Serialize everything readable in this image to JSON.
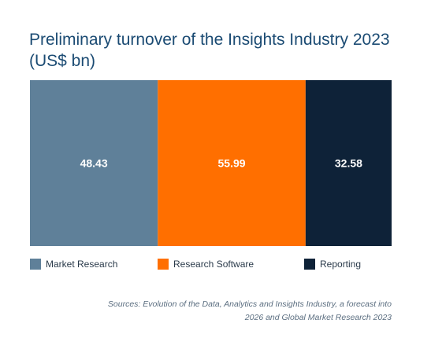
{
  "chart_data": {
    "type": "bar",
    "title": "Preliminary turnover of the Insights Industry 2023 (US$ bn)",
    "categories": [
      "Market Research",
      "Research Software",
      "Reporting"
    ],
    "values": [
      48.43,
      55.99,
      32.58
    ],
    "value_labels": [
      "48.43",
      "55.99",
      "32.58"
    ],
    "colors": [
      "#5f8099",
      "#ff6f00",
      "#0e2238"
    ],
    "label_color": "#ffffff",
    "layout": "stacked horizontal (100% width)",
    "legend_position": "bottom",
    "grid": false
  },
  "source": "Sources: Evolution of the Data, Analytics and Insights Industry, a forecast into 2026 and Global Market Research 2023"
}
